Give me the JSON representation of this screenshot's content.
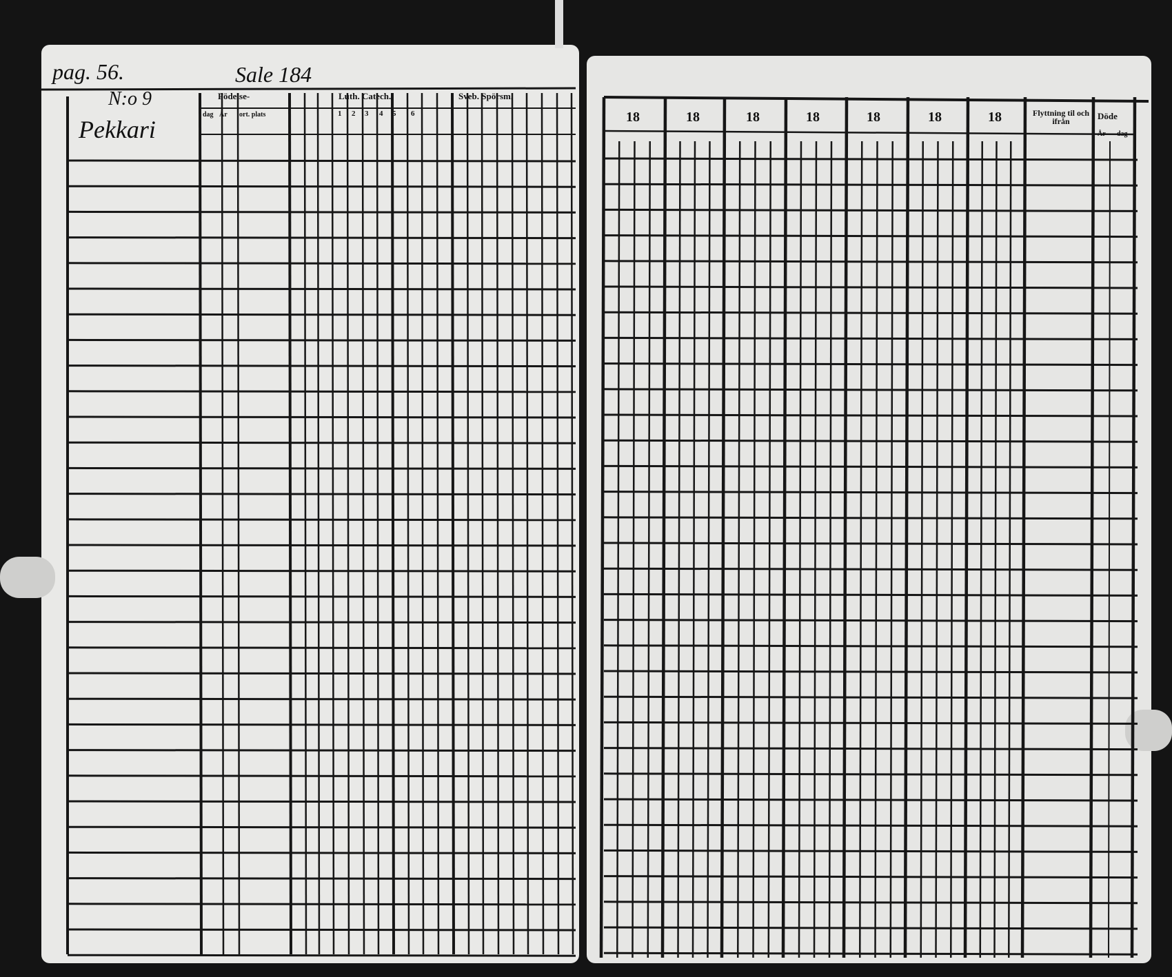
{
  "left_page": {
    "page_ref": "pag. 56.",
    "village": "Sale 184",
    "number": "N:o 9",
    "farm": "Pekkari",
    "headers": {
      "birth": "Födelse-",
      "year": "År",
      "day": "dag",
      "place": "ort. plats",
      "catechism": "Luth. Catech.",
      "catechism_parts": [
        "1",
        "2",
        "3",
        "4",
        "5",
        "6"
      ],
      "questions": "Sveb. Spörsm."
    }
  },
  "right_page": {
    "year_headers": [
      "18",
      "18",
      "18",
      "18",
      "18",
      "18",
      "18"
    ],
    "moving": "Flyttning til och ifrån",
    "deaths": "Döde",
    "deaths_year": "År",
    "deaths_day": "dag"
  }
}
